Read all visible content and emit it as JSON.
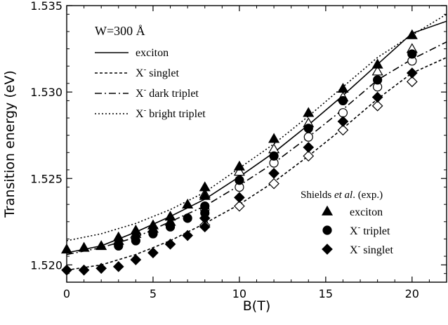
{
  "chart_data": {
    "type": "scatter",
    "xlabel": "B(T)",
    "ylabel": "Transition energy (eV)",
    "xlim": [
      0,
      22
    ],
    "ylim": [
      1.519,
      1.535
    ],
    "x_ticks": [
      0,
      5,
      10,
      15,
      20
    ],
    "y_ticks": [
      1.52,
      1.525,
      1.53,
      1.535
    ],
    "x_tick_labels": [
      "0",
      "5",
      "10",
      "15",
      "20"
    ],
    "y_tick_labels": [
      "1.520",
      "1.525",
      "1.530",
      "1.535"
    ],
    "legend_title": "W=300 Å",
    "legend_placement": "top-left",
    "legend2_title_prefix": "Shields ",
    "legend2_title_italic": "et al",
    "legend2_title_suffix": ". (exp.)",
    "legend2_placement": "lower-right",
    "lines": [
      {
        "name": "exciton",
        "style": "solid",
        "superscript": "",
        "x": [
          0,
          2,
          4,
          6,
          8,
          10,
          12,
          14,
          16,
          18,
          20,
          22
        ],
        "y": [
          1.5207,
          1.5211,
          1.5219,
          1.5228,
          1.5238,
          1.5251,
          1.5265,
          1.5281,
          1.5298,
          1.5316,
          1.5334,
          1.5341
        ]
      },
      {
        "name": "X",
        "style": "short-dash",
        "superscript": "-",
        "suffix": " singlet",
        "x": [
          0,
          2,
          4,
          6,
          8,
          10,
          12,
          14,
          16,
          18,
          20,
          22
        ],
        "y": [
          1.5197,
          1.52,
          1.5206,
          1.5214,
          1.5224,
          1.5235,
          1.5248,
          1.5263,
          1.5279,
          1.5296,
          1.5311,
          1.532
        ]
      },
      {
        "name": "X",
        "style": "dash-dot",
        "superscript": "-",
        "suffix": " dark triplet",
        "x": [
          0,
          2,
          4,
          6,
          8,
          10,
          12,
          14,
          16,
          18,
          20,
          22
        ],
        "y": [
          1.5206,
          1.521,
          1.5216,
          1.5225,
          1.5234,
          1.5246,
          1.5259,
          1.5274,
          1.529,
          1.5307,
          1.5319,
          1.5329
        ]
      },
      {
        "name": "X",
        "style": "dotted",
        "superscript": "-",
        "suffix": " bright triplet",
        "x": [
          0,
          2,
          4,
          6,
          8,
          10,
          12,
          14,
          16,
          18,
          20,
          22
        ],
        "y": [
          1.5214,
          1.5218,
          1.5224,
          1.5232,
          1.5242,
          1.5256,
          1.527,
          1.5286,
          1.5303,
          1.532,
          1.5333,
          1.5345
        ]
      }
    ],
    "theory_points": [
      {
        "series": "exciton",
        "marker": "triangle",
        "x": [
          8,
          10,
          12,
          14,
          16,
          18,
          20
        ],
        "y": [
          1.5241,
          1.5254,
          1.5267,
          1.5282,
          1.5297,
          1.5312,
          1.5325
        ]
      },
      {
        "series": "X- triplet",
        "marker": "circle",
        "x": [
          8,
          10,
          12,
          14,
          16,
          18,
          20
        ],
        "y": [
          1.5232,
          1.5245,
          1.5259,
          1.5274,
          1.5288,
          1.5303,
          1.5318
        ]
      },
      {
        "series": "X- singlet",
        "marker": "diamond",
        "x": [
          8,
          10,
          12,
          14,
          16,
          18,
          20
        ],
        "y": [
          1.5223,
          1.5234,
          1.5247,
          1.5263,
          1.5278,
          1.5292,
          1.5306
        ]
      }
    ],
    "series": [
      {
        "name": "exciton",
        "marker": "triangle",
        "superscript": "",
        "x": [
          0,
          1,
          2,
          3,
          3,
          4,
          4,
          5,
          5,
          6,
          6,
          7,
          8,
          8,
          10,
          12,
          14,
          16,
          18,
          20
        ],
        "y": [
          1.5209,
          1.521,
          1.5211,
          1.5214,
          1.5216,
          1.5218,
          1.522,
          1.5221,
          1.5223,
          1.5225,
          1.5228,
          1.5235,
          1.524,
          1.5245,
          1.5257,
          1.5273,
          1.5288,
          1.5302,
          1.5316,
          1.5333
        ]
      },
      {
        "name": "X",
        "marker": "circle",
        "superscript": "-",
        "suffix": " triplet",
        "x": [
          3,
          4,
          5,
          6,
          7,
          8,
          8,
          10,
          12,
          14,
          16,
          18,
          20
        ],
        "y": [
          1.5211,
          1.5214,
          1.5218,
          1.5222,
          1.5227,
          1.523,
          1.5234,
          1.5249,
          1.5263,
          1.5279,
          1.5295,
          1.5307,
          1.5322
        ]
      },
      {
        "name": "X",
        "marker": "diamond",
        "superscript": "-",
        "suffix": " singlet",
        "x": [
          0,
          1,
          2,
          3,
          4,
          5,
          6,
          7,
          8,
          8,
          10,
          12,
          14,
          16,
          18,
          20
        ],
        "y": [
          1.5197,
          1.5197,
          1.5198,
          1.5199,
          1.5203,
          1.5207,
          1.5212,
          1.5217,
          1.5222,
          1.5227,
          1.5239,
          1.5253,
          1.5268,
          1.5283,
          1.5297,
          1.5311
        ]
      }
    ]
  }
}
